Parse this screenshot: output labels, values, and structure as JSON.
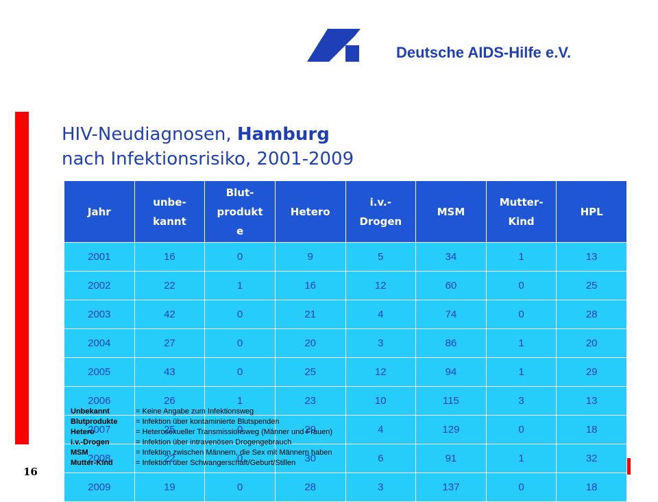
{
  "header": {
    "logo_icon": "deutsche-aids-hilfe-logo",
    "org_name": "Deutsche AIDS-Hilfe e.V."
  },
  "title": {
    "line1_prefix": "HIV-Neudiagnosen, ",
    "line1_bold": "Hamburg",
    "line2": "nach Infektionsrisiko, 2001-2009"
  },
  "table": {
    "headers": [
      "Jahr",
      "unbe-\nkannt",
      "Blut-\nprodukt\ne",
      "Hetero",
      "i.v.-\nDrogen",
      "MSM",
      "Mutter-\nKind",
      "HPL"
    ],
    "rows": [
      [
        "2001",
        "16",
        "0",
        "9",
        "5",
        "34",
        "1",
        "13"
      ],
      [
        "2002",
        "22",
        "1",
        "16",
        "12",
        "60",
        "0",
        "25"
      ],
      [
        "2003",
        "42",
        "0",
        "21",
        "4",
        "74",
        "0",
        "28"
      ],
      [
        "2004",
        "27",
        "0",
        "20",
        "3",
        "86",
        "1",
        "20"
      ],
      [
        "2005",
        "43",
        "0",
        "25",
        "12",
        "94",
        "1",
        "29"
      ],
      [
        "2006",
        "26",
        "1",
        "23",
        "10",
        "115",
        "3",
        "13"
      ],
      [
        "2007",
        "25",
        "0",
        "29",
        "4",
        "129",
        "0",
        "18"
      ],
      [
        "2008",
        "22",
        "0",
        "30",
        "6",
        "91",
        "1",
        "32"
      ],
      [
        "2009",
        "19",
        "0",
        "28",
        "3",
        "137",
        "0",
        "18"
      ]
    ]
  },
  "legend": [
    {
      "term": "Unbekannt",
      "def": "= Keine Angabe zum Infektionsweg"
    },
    {
      "term": "Blutprodukte",
      "def": "= Infektion über kontaminierte Blutspenden"
    },
    {
      "term": "Hetero",
      "def": "= Heterosexueller Transmissionsweg (Männer und Frauen)"
    },
    {
      "term": "i.v.-Drogen",
      "def": "= Infektion über intravenösen Drogengebrauch"
    },
    {
      "term": "MSM",
      "def": "= Infektion zwischen Männern, die Sex mit Männern haben"
    },
    {
      "term": "Mutter-Kind",
      "def": "= Infektion über Schwangerschaft/Geburt/Stillen"
    }
  ],
  "footer": {
    "page_number": "16"
  },
  "colors": {
    "brand_blue": "#1f3fb6",
    "header_blue": "#1f56d6",
    "cell_cyan": "#27cdfa",
    "accent_red": "#ff0000"
  }
}
